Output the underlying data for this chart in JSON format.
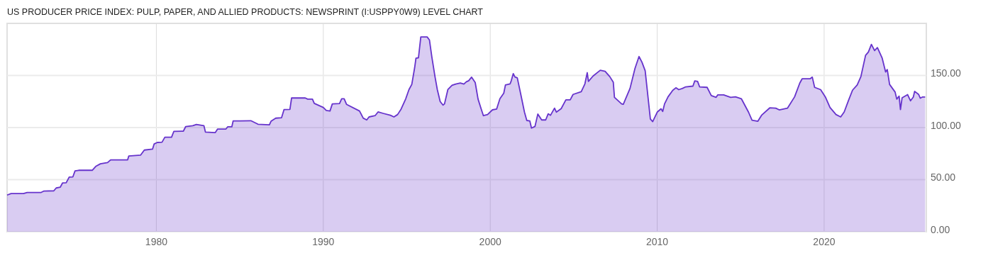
{
  "chart_data": {
    "type": "area",
    "title": "US PRODUCER PRICE INDEX: PULP, PAPER, AND ALLIED PRODUCTS: NEWSPRINT (I:USPPY0W9) LEVEL CHART",
    "xlim": [
      1971.06,
      2026.12
    ],
    "xticks": [
      1980,
      1990,
      2000,
      2010,
      2020
    ],
    "ylim": [
      0,
      200
    ],
    "yticks": [
      {
        "value": 0,
        "label": "0.00"
      },
      {
        "value": 50,
        "label": "50.00"
      },
      {
        "value": 100,
        "label": "100.00"
      },
      {
        "value": 150,
        "label": "150.00"
      }
    ],
    "grid": true,
    "series": [
      {
        "color": "#6633cc",
        "x": [
          1971.06,
          1971.3,
          1972.04,
          1972.26,
          1973.1,
          1973.25,
          1973.86,
          1974.0,
          1974.24,
          1974.38,
          1974.6,
          1974.78,
          1975.0,
          1975.13,
          1975.35,
          1976.16,
          1976.37,
          1976.65,
          1977.08,
          1977.26,
          1978.28,
          1978.35,
          1979.06,
          1979.28,
          1979.77,
          1979.87,
          1980.06,
          1980.34,
          1980.51,
          1980.91,
          1981.05,
          1981.62,
          1981.76,
          1982.18,
          1982.4,
          1982.85,
          1982.94,
          1983.53,
          1983.67,
          1984.17,
          1984.27,
          1984.52,
          1984.6,
          1985.02,
          1985.66,
          1986.09,
          1986.77,
          1986.87,
          1987.15,
          1987.5,
          1987.65,
          1988.0,
          1988.1,
          1988.92,
          1989.06,
          1989.35,
          1989.46,
          1990.0,
          1990.18,
          1990.4,
          1990.54,
          1990.97,
          1991.1,
          1991.25,
          1991.39,
          1992.17,
          1992.39,
          1992.6,
          1992.74,
          1993.1,
          1993.28,
          1993.59,
          1994.02,
          1994.23,
          1994.45,
          1994.66,
          1994.94,
          1995.13,
          1995.3,
          1995.47,
          1995.55,
          1995.7,
          1995.84,
          1996.22,
          1996.36,
          1996.5,
          1996.69,
          1996.83,
          1997.0,
          1997.17,
          1997.26,
          1997.46,
          1997.71,
          1997.93,
          1998.21,
          1998.42,
          1998.57,
          1998.71,
          1998.88,
          1999.1,
          1999.27,
          1999.45,
          1999.59,
          1999.84,
          2000.13,
          2000.38,
          2000.58,
          2000.81,
          2000.91,
          2001.19,
          2001.26,
          2001.38,
          2001.48,
          2001.62,
          2001.83,
          2002.05,
          2002.19,
          2002.37,
          2002.47,
          2002.68,
          2002.85,
          2003.08,
          2003.32,
          2003.47,
          2003.61,
          2003.85,
          2003.96,
          2004.25,
          2004.53,
          2004.79,
          2004.96,
          2005.45,
          2005.67,
          2005.81,
          2005.88,
          2006.16,
          2006.59,
          2006.88,
          2007.16,
          2007.37,
          2007.44,
          2007.87,
          2007.97,
          2008.37,
          2008.67,
          2008.91,
          2009.09,
          2009.28,
          2009.59,
          2009.73,
          2010.01,
          2010.23,
          2010.33,
          2010.44,
          2010.65,
          2010.93,
          2011.12,
          2011.29,
          2011.5,
          2011.71,
          2012.14,
          2012.25,
          2012.42,
          2012.54,
          2012.99,
          2013.24,
          2013.53,
          2013.63,
          2013.98,
          2014.4,
          2014.69,
          2015.04,
          2015.47,
          2015.68,
          2016.03,
          2016.25,
          2016.74,
          2017.1,
          2017.31,
          2017.8,
          2018.23,
          2018.54,
          2018.68,
          2019.15,
          2019.29,
          2019.43,
          2019.79,
          2020.07,
          2020.35,
          2020.71,
          2020.99,
          2021.2,
          2021.46,
          2021.7,
          2021.98,
          2022.2,
          2022.48,
          2022.65,
          2022.83,
          2023.02,
          2023.19,
          2023.47,
          2023.68,
          2023.78,
          2023.92,
          2024.25,
          2024.35,
          2024.49,
          2024.57,
          2024.67,
          2025.0,
          2025.17,
          2025.34,
          2025.42,
          2025.66,
          2025.76,
          2025.88,
          2026.05
        ],
        "values": [
          35.2,
          36.6,
          36.6,
          37.7,
          37.7,
          39,
          39.3,
          42,
          42.7,
          46.8,
          47,
          52.5,
          52.7,
          58.4,
          59,
          59,
          62.7,
          65.2,
          66.4,
          69,
          69,
          72.7,
          73.6,
          78.4,
          79.3,
          84.3,
          85.7,
          86,
          90.7,
          90.7,
          96.4,
          96.6,
          101,
          101.8,
          103,
          101.8,
          95.7,
          95.2,
          98.6,
          98.6,
          100.7,
          100.7,
          106.4,
          106.4,
          106.6,
          103.2,
          102.7,
          106.1,
          109,
          109.5,
          117.3,
          117.5,
          128.4,
          128.4,
          127.3,
          127.3,
          123.2,
          119.3,
          116.4,
          115.9,
          122.7,
          123,
          127.7,
          127.7,
          122.3,
          115.9,
          109.1,
          107.3,
          110.2,
          111.4,
          115,
          113.6,
          111.8,
          110.2,
          112.5,
          117.7,
          127.7,
          136.4,
          141.4,
          157.3,
          166.6,
          167,
          187,
          187,
          184,
          168,
          148.9,
          136.4,
          125,
          121.6,
          122.7,
          136.4,
          140.5,
          141.8,
          142.7,
          141.8,
          144,
          145,
          148.4,
          143.2,
          127.3,
          118.2,
          111.4,
          112.5,
          117,
          117.7,
          127.7,
          133,
          140.9,
          142,
          145,
          151.8,
          148.6,
          147.7,
          131.8,
          114.8,
          106.8,
          106.4,
          99.5,
          101.1,
          113,
          107.3,
          107.3,
          113.2,
          111.8,
          118.6,
          114.8,
          118.2,
          126.6,
          126.6,
          131.8,
          134.5,
          142,
          152.7,
          144.3,
          149.5,
          155,
          154,
          148.9,
          143.6,
          129,
          122.7,
          122.3,
          137.5,
          156.8,
          168.2,
          162.7,
          154.5,
          108.2,
          105.7,
          115,
          118,
          115.5,
          122.7,
          129.5,
          135.7,
          138.2,
          136.4,
          137.5,
          139.1,
          139.8,
          144.8,
          144.3,
          139.1,
          138.6,
          130.7,
          129,
          131.4,
          131.4,
          129,
          129.5,
          127.7,
          114.8,
          107,
          106.1,
          111.8,
          118.9,
          118.6,
          117,
          118.6,
          129.5,
          142.7,
          146.8,
          146.8,
          148.4,
          138.6,
          136.4,
          129.5,
          119.3,
          112.5,
          110.2,
          115,
          126.1,
          135.9,
          140.9,
          148.9,
          169.3,
          172.5,
          179.8,
          173.9,
          176.8,
          167,
          153.4,
          155.7,
          141.4,
          134.1,
          127.3,
          130.2,
          117.3,
          128.6,
          131.6,
          125.7,
          129.3,
          134.8,
          131.8,
          128.2,
          129.3,
          129.3
        ]
      }
    ]
  }
}
